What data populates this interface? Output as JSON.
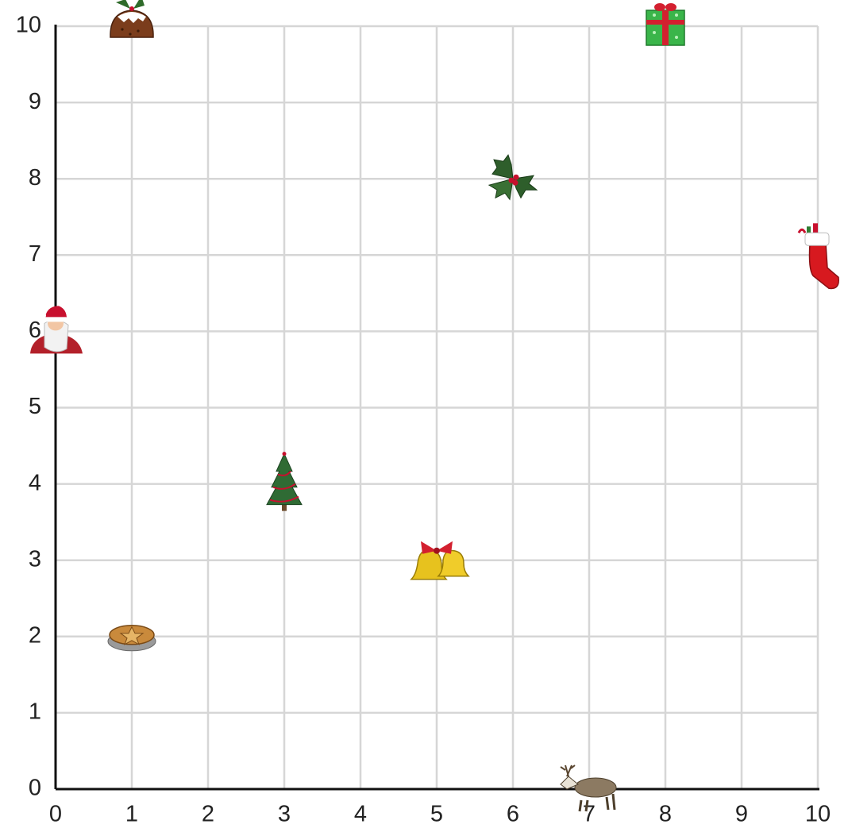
{
  "chart_data": {
    "type": "scatter",
    "x": [
      1,
      8,
      6,
      10,
      0,
      3,
      5,
      1,
      7
    ],
    "values": [
      10,
      10,
      8,
      7,
      6,
      4,
      3,
      2,
      0
    ],
    "xlim": [
      0,
      10
    ],
    "ylim": [
      0,
      10
    ],
    "xticks": [
      0,
      1,
      2,
      3,
      4,
      5,
      6,
      7,
      8,
      9,
      10
    ],
    "yticks": [
      0,
      1,
      2,
      3,
      4,
      5,
      6,
      7,
      8,
      9,
      10
    ],
    "grid": true
  }
}
